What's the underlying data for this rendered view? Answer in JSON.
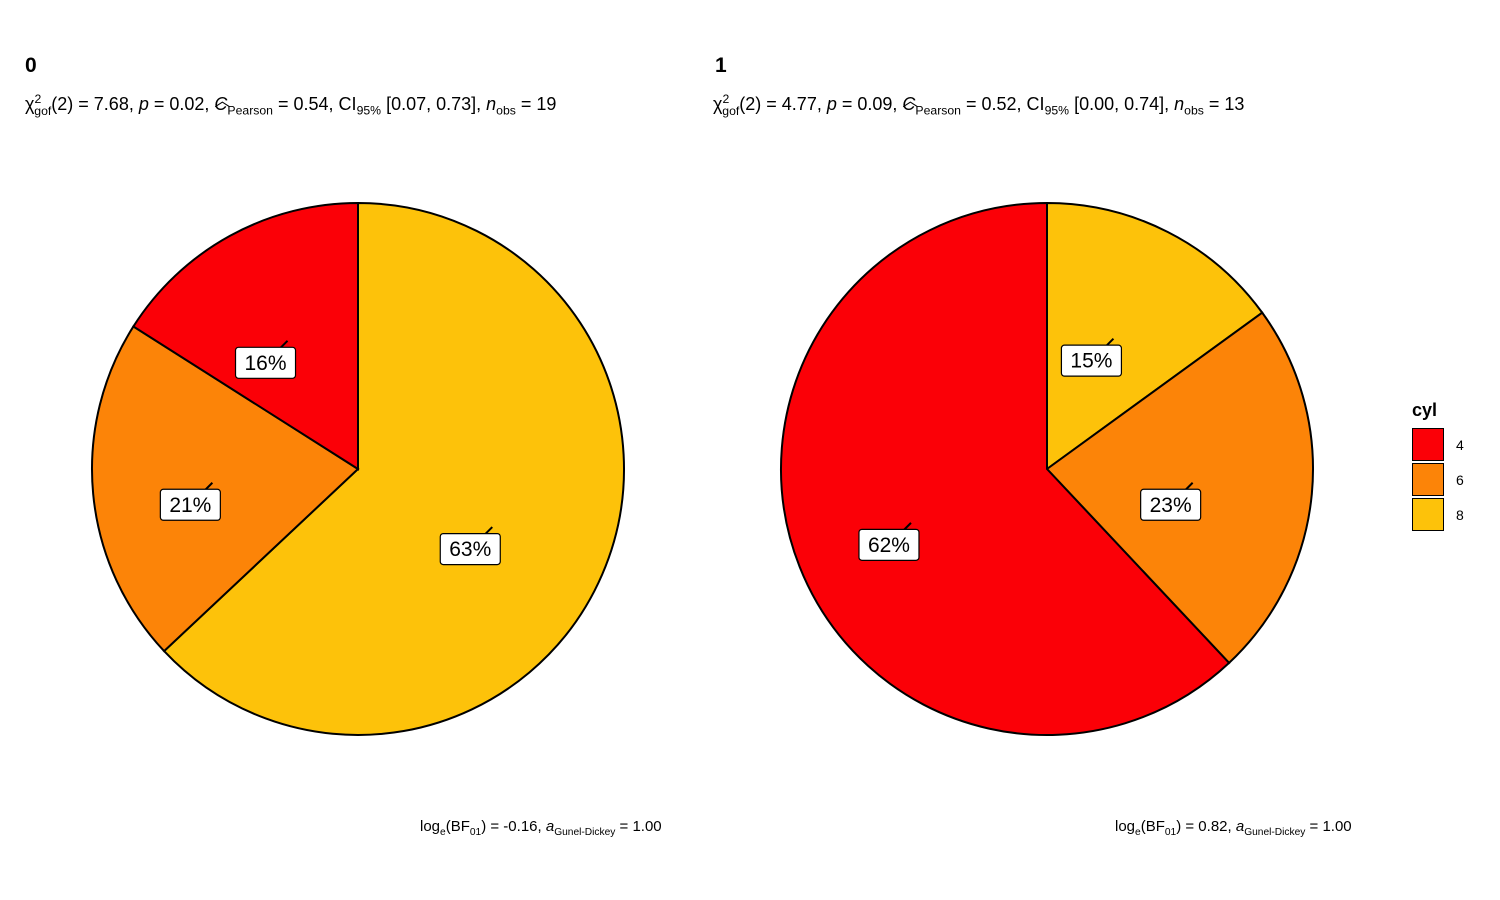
{
  "chart_data": [
    {
      "type": "pie",
      "title": "0",
      "subtitle": {
        "chi": "χ",
        "chi_sup": "2",
        "chi_sub": "gof",
        "df": "(2) = 7.68, ",
        "p_label": "p",
        "p_val": " = 0.02, ",
        "c_label": "C",
        "c_sub": "Pearson",
        "c_val": " = 0.54, CI",
        "ci_sub": "95%",
        "ci_val": " [0.07, 0.73], ",
        "n_label": "n",
        "n_sub": "obs",
        "n_val": " = 19"
      },
      "caption": {
        "log": "log",
        "log_sub": "e",
        "bf": "(BF",
        "bf_sub": "01",
        "bf_val": ") = -0.16, ",
        "a_label": "a",
        "a_sub": "Gunel-Dickey",
        "a_val": " = 1.00"
      },
      "categories": [
        "4",
        "6",
        "8"
      ],
      "values": [
        16,
        21,
        63
      ],
      "labels": [
        "16%",
        "21%",
        "63%"
      ]
    },
    {
      "type": "pie",
      "title": "1",
      "subtitle": {
        "chi": "χ",
        "chi_sup": "2",
        "chi_sub": "gof",
        "df": "(2) = 4.77, ",
        "p_label": "p",
        "p_val": " = 0.09, ",
        "c_label": "C",
        "c_sub": "Pearson",
        "c_val": " = 0.52, CI",
        "ci_sub": "95%",
        "ci_val": " [0.00, 0.74], ",
        "n_label": "n",
        "n_sub": "obs",
        "n_val": " = 13"
      },
      "caption": {
        "log": "log",
        "log_sub": "e",
        "bf": "(BF",
        "bf_sub": "01",
        "bf_val": ") = 0.82, ",
        "a_label": "a",
        "a_sub": "Gunel-Dickey",
        "a_val": " = 1.00"
      },
      "categories": [
        "4",
        "6",
        "8"
      ],
      "values": [
        62,
        23,
        15
      ],
      "labels": [
        "62%",
        "23%",
        "15%"
      ]
    }
  ],
  "legend": {
    "title": "cyl",
    "items": [
      {
        "label": "4",
        "color": "#FB0007"
      },
      {
        "label": "6",
        "color": "#FC8408"
      },
      {
        "label": "8",
        "color": "#FDC20A"
      }
    ]
  }
}
